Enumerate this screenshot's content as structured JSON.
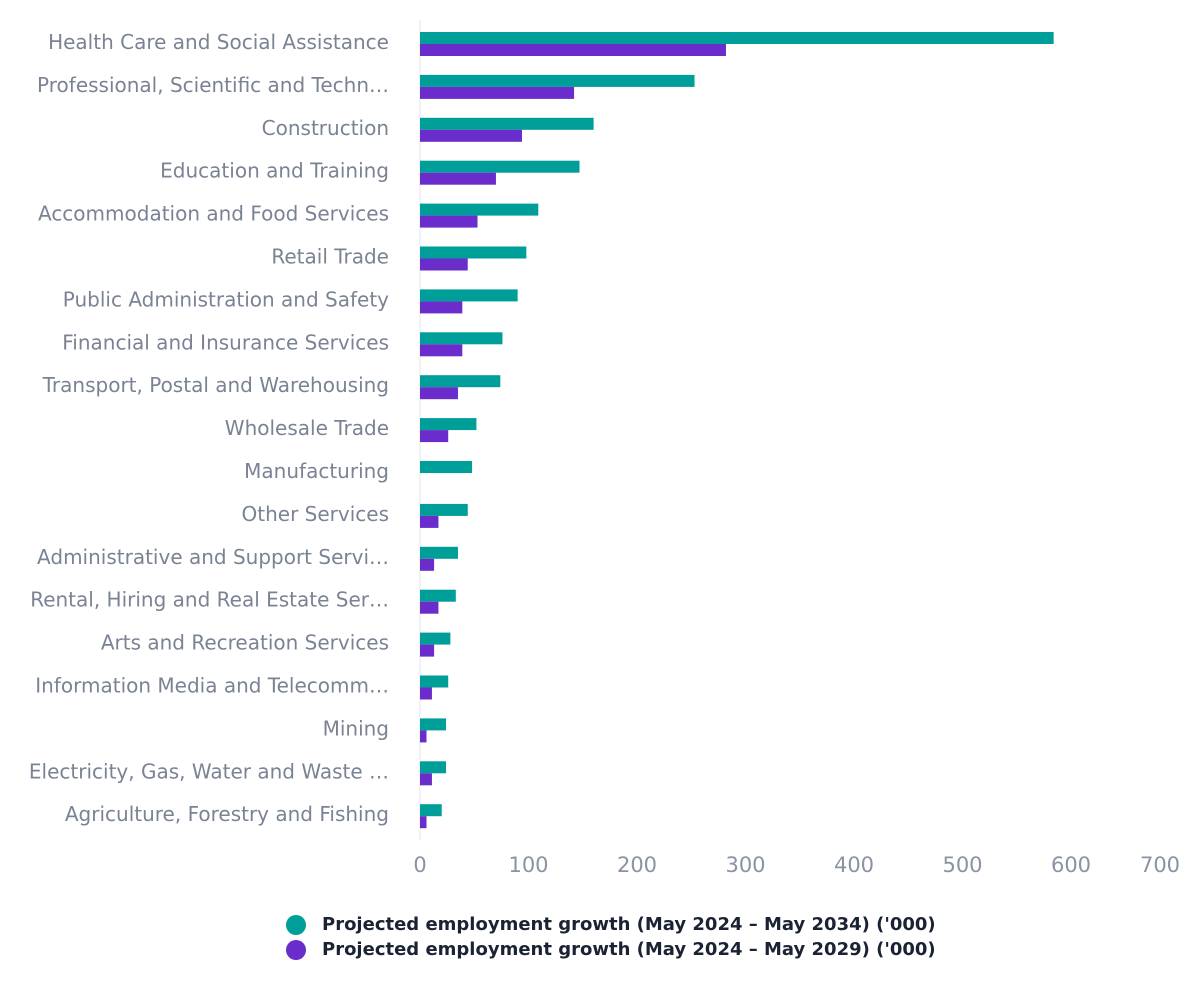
{
  "chart_data": {
    "type": "bar",
    "orientation": "horizontal",
    "title": "",
    "xlabel": "",
    "ylabel": "",
    "xlim": [
      0,
      700
    ],
    "xticks": [
      0,
      100,
      200,
      300,
      400,
      500,
      600,
      700
    ],
    "grid": false,
    "legend_placement": "bottom",
    "categories": [
      "Health Care and Social Assistance",
      "Professional, Scientific and Techn…",
      "Construction",
      "Education and Training",
      "Accommodation and Food Services",
      "Retail Trade",
      "Public Administration and Safety",
      "Financial and Insurance Services",
      "Transport, Postal and Warehousing",
      "Wholesale Trade",
      "Manufacturing",
      "Other Services",
      "Administrative and Support Servi…",
      "Rental, Hiring and Real Estate Ser…",
      "Arts and Recreation Services",
      "Information Media and Telecomm…",
      "Mining",
      "Electricity, Gas, Water and Waste …",
      "Agriculture, Forestry and Fishing"
    ],
    "series": [
      {
        "name": "Projected employment growth (May 2024 – May 2034) ('000)",
        "color": "#009e98",
        "values": [
          584,
          253,
          160,
          147,
          109,
          98,
          90,
          76,
          74,
          52,
          48,
          44,
          35,
          33,
          28,
          26,
          24,
          24,
          20
        ]
      },
      {
        "name": "Projected employment growth (May 2024 – May 2029) ('000)",
        "color": "#6a2ccb",
        "values": [
          282,
          142,
          94,
          70,
          53,
          44,
          39,
          39,
          35,
          26,
          0,
          17,
          13,
          17,
          13,
          11,
          6,
          11,
          6
        ]
      }
    ]
  }
}
